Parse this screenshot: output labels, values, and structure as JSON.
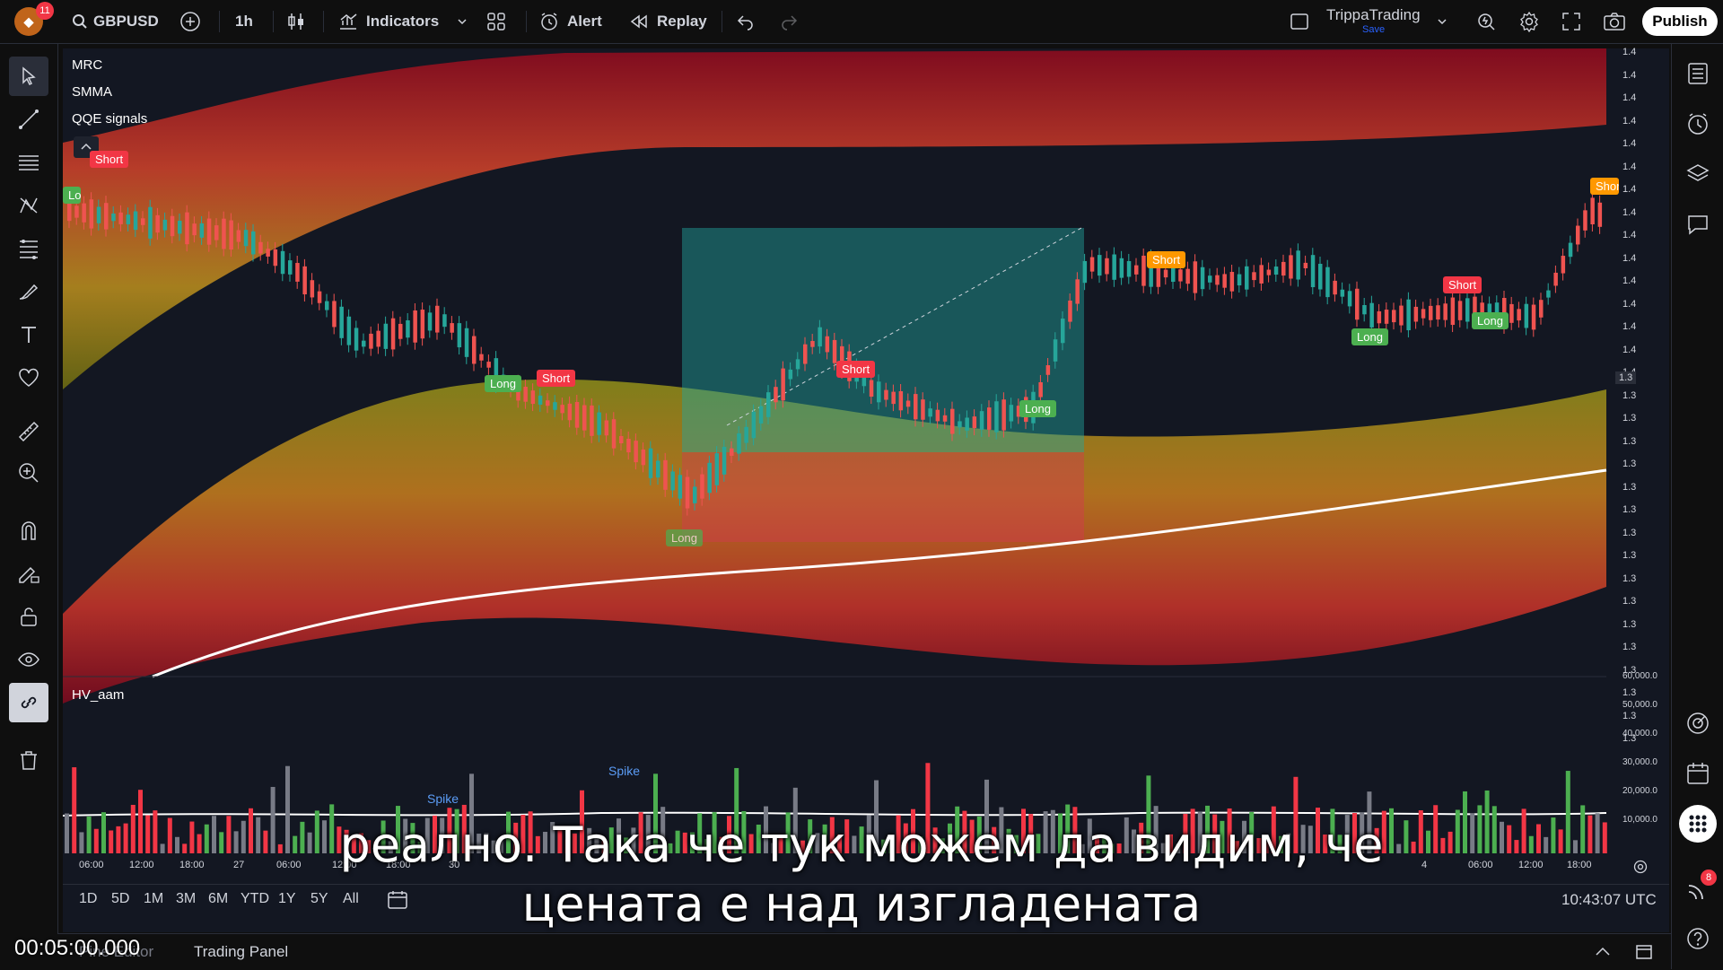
{
  "topbar": {
    "badge": "11",
    "symbol": "GBPUSD",
    "interval": "1h",
    "indicators_label": "Indicators",
    "alert_label": "Alert",
    "replay_label": "Replay",
    "account_name": "TrippaTrading",
    "save_label": "Save",
    "publish_label": "Publish"
  },
  "legend": {
    "items": [
      "MRC",
      "SMMA",
      "QQE signals"
    ],
    "volume_indicator": "HV_aam"
  },
  "signals": [
    "Short",
    "Long",
    "Short",
    "Long",
    "Long",
    "Short",
    "Long",
    "Short",
    "Long",
    "Short",
    "Long",
    "Short"
  ],
  "spike_labels": [
    "Spike",
    "Spike"
  ],
  "price_axis": [
    "1.4",
    "1.4",
    "1.4",
    "1.4",
    "1.4",
    "1.4",
    "1.4",
    "1.4",
    "1.4",
    "1.4",
    "1.4",
    "1.4",
    "1.4",
    "1.4",
    "1.4",
    "1.3",
    "1.3",
    "1.3",
    "1.3",
    "1.3",
    "1.3",
    "1.3",
    "1.3",
    "1.3",
    "1.3",
    "1.3",
    "1.3",
    "1.3",
    "1.3",
    "1.3",
    "1.3"
  ],
  "current_price_label": "1.3",
  "volume_axis": [
    "60,000.0",
    "50,000.0",
    "40,000.0",
    "30,000.0",
    "20,000.0",
    "10,000.0"
  ],
  "time_axis": [
    "06:00",
    "12:00",
    "18:00",
    "27",
    "06:00",
    "12:00",
    "18:00",
    "30",
    "4",
    "06:00",
    "12:00",
    "18:00"
  ],
  "range_buttons": [
    "1D",
    "5D",
    "1M",
    "3M",
    "6M",
    "YTD",
    "1Y",
    "5Y",
    "All"
  ],
  "clock": "10:43:07 UTC",
  "bottom_tabs": [
    "Pine Editor",
    "Trading Panel"
  ],
  "notification_badge": "8",
  "subtitle_lines": [
    "реално. Така че тук можем да видим, че",
    "цената е над изгладената"
  ],
  "timecode": "00:05:00.000"
}
